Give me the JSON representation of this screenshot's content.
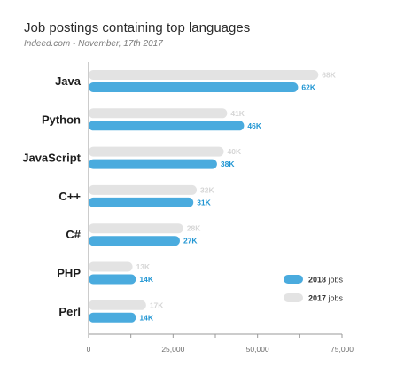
{
  "chart_data": {
    "type": "bar",
    "orientation": "horizontal",
    "title": "Job postings containing top languages",
    "subtitle": "Indeed.com - November, 17th 2017",
    "categories": [
      "Java",
      "Python",
      "JavaScript",
      "C++",
      "C#",
      "PHP",
      "Perl"
    ],
    "series": [
      {
        "name": "2017 jobs",
        "values": [
          68000,
          41000,
          40000,
          32000,
          28000,
          13000,
          17000
        ],
        "labels": [
          "68K",
          "41K",
          "40K",
          "32K",
          "28K",
          "13K",
          "17K"
        ],
        "color": "#e3e3e3",
        "label_color": "#d6d6d6"
      },
      {
        "name": "2018 jobs",
        "values": [
          62000,
          46000,
          38000,
          31000,
          27000,
          14000,
          14000
        ],
        "labels": [
          "62K",
          "46K",
          "38K",
          "31K",
          "27K",
          "14K",
          "14K"
        ],
        "color": "#4aabde",
        "label_color": "#2196d3"
      }
    ],
    "xlim": [
      0,
      75000
    ],
    "xticks": [
      0,
      25000,
      50000,
      75000
    ],
    "xtick_labels": [
      "0",
      "25,000",
      "50,000",
      "75,000"
    ],
    "legend": {
      "placement": "bottom-right",
      "entries": [
        {
          "bold": "2018",
          "rest": " jobs",
          "color": "#4aabde"
        },
        {
          "bold": "2017",
          "rest": " jobs",
          "color": "#e3e3e3"
        }
      ]
    },
    "grid": false
  }
}
